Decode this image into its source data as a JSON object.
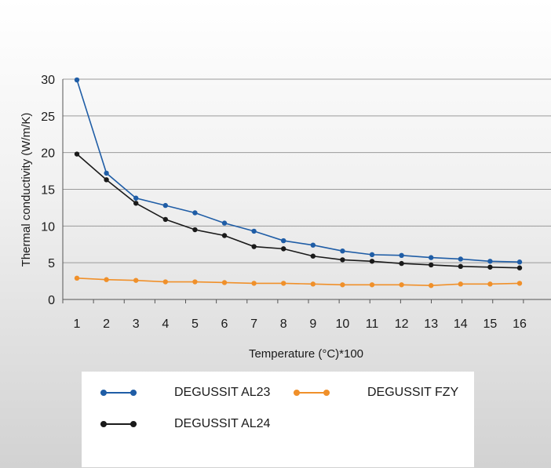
{
  "chart_data": {
    "type": "line",
    "title": "",
    "xlabel": "Temperature (°C)*100",
    "ylabel": "Thermal conductivity  (W/m/K)",
    "x": [
      1,
      2,
      3,
      4,
      5,
      6,
      7,
      8,
      9,
      10,
      11,
      12,
      13,
      14,
      15,
      16
    ],
    "xlim": [
      1,
      16
    ],
    "ylim": [
      0,
      30
    ],
    "yticks": [
      0,
      5,
      10,
      15,
      20,
      25,
      30
    ],
    "grid": true,
    "legend_position": "bottom",
    "series": [
      {
        "name": "DEGUSSIT AL23",
        "color": "#1f5da6",
        "values": [
          29.9,
          17.2,
          13.8,
          12.8,
          11.8,
          10.4,
          9.3,
          8.0,
          7.4,
          6.6,
          6.1,
          6.0,
          5.7,
          5.5,
          5.2,
          5.1
        ]
      },
      {
        "name": "DEGUSSIT AL24",
        "color": "#1a1a1a",
        "values": [
          19.8,
          16.3,
          13.1,
          10.9,
          9.5,
          8.7,
          7.2,
          6.9,
          5.9,
          5.4,
          5.2,
          4.9,
          4.7,
          4.5,
          4.4,
          4.3
        ]
      },
      {
        "name": "DEGUSSIT FZY",
        "color": "#f0902a",
        "values": [
          2.9,
          2.7,
          2.6,
          2.4,
          2.4,
          2.3,
          2.2,
          2.2,
          2.1,
          2.0,
          2.0,
          2.0,
          1.9,
          2.1,
          2.1,
          2.2
        ]
      }
    ]
  }
}
